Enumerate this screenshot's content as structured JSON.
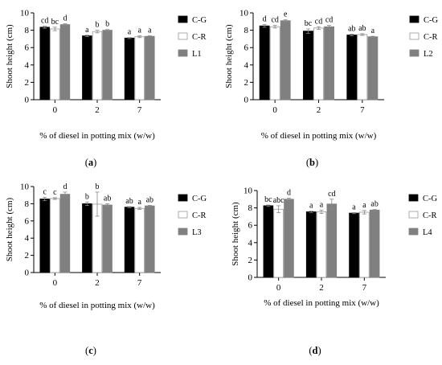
{
  "chart_data": [
    {
      "type": "bar",
      "panel_label": "(a)",
      "ylabel": "Shoot height (cm)",
      "xlabel": "% of diesel in potting mix (w/w)",
      "categories": [
        "0",
        "2",
        "7"
      ],
      "ylim": [
        0,
        10
      ],
      "yticks": [
        "0",
        "2",
        "4",
        "6",
        "8",
        "10"
      ],
      "series": [
        {
          "name": "C-G",
          "values": [
            8.35,
            7.35,
            7.1
          ],
          "errors": [
            0.12,
            0.08,
            0.06
          ],
          "letters": [
            "cd",
            "a",
            "a"
          ]
        },
        {
          "name": "C-R",
          "values": [
            8.15,
            7.85,
            7.25
          ],
          "errors": [
            0.2,
            0.15,
            0.1
          ],
          "letters": [
            "bc",
            "b",
            "a"
          ]
        },
        {
          "name": "L1",
          "values": [
            8.65,
            8.0,
            7.3
          ],
          "errors": [
            0.1,
            0.08,
            0.06
          ],
          "letters": [
            "d",
            "b",
            "a"
          ]
        }
      ],
      "legend_position": "right"
    },
    {
      "type": "bar",
      "panel_label": "(b)",
      "ylabel": "Shoot height (cm)",
      "xlabel": "% of diesel in potting mix (w/w)",
      "categories": [
        "0",
        "2",
        "7"
      ],
      "ylim": [
        0,
        10
      ],
      "yticks": [
        "0",
        "2",
        "4",
        "6",
        "8",
        "10"
      ],
      "series": [
        {
          "name": "C-G",
          "values": [
            8.5,
            7.9,
            7.45
          ],
          "errors": [
            0.15,
            0.25,
            0.1
          ],
          "letters": [
            "d",
            "bc",
            "ab"
          ]
        },
        {
          "name": "C-R",
          "values": [
            8.4,
            8.25,
            7.5
          ],
          "errors": [
            0.15,
            0.15,
            0.1
          ],
          "letters": [
            "cd",
            "cd",
            "ab"
          ]
        },
        {
          "name": "L2",
          "values": [
            9.1,
            8.4,
            7.25
          ],
          "errors": [
            0.1,
            0.15,
            0.06
          ],
          "letters": [
            "e",
            "cd",
            "a"
          ]
        }
      ],
      "legend_position": "right"
    },
    {
      "type": "bar",
      "panel_label": "(c)",
      "ylabel": "Shoot height (cm)",
      "xlabel": "% of diesel in potting mix (w/w)",
      "categories": [
        "0",
        "2",
        "7"
      ],
      "ylim": [
        0,
        10
      ],
      "yticks": [
        "0",
        "2",
        "4",
        "6",
        "8",
        "10"
      ],
      "series": [
        {
          "name": "C-G",
          "values": [
            8.55,
            8.0,
            7.6
          ],
          "errors": [
            0.2,
            0.2,
            0.06
          ],
          "letters": [
            "c",
            "b",
            "ab"
          ]
        },
        {
          "name": "C-R",
          "values": [
            8.6,
            7.95,
            7.45
          ],
          "errors": [
            0.1,
            1.4,
            0.12
          ],
          "letters": [
            "c",
            "b",
            "a"
          ]
        },
        {
          "name": "L3",
          "values": [
            9.1,
            7.85,
            7.75
          ],
          "errors": [
            0.25,
            0.15,
            0.06
          ],
          "letters": [
            "d",
            "ab",
            "ab"
          ]
        }
      ],
      "legend_position": "right"
    },
    {
      "type": "bar",
      "panel_label": "(d)",
      "ylabel": "Shoot height (cm)",
      "xlabel": "% of diesel in potting mix (w/w)",
      "categories": [
        "0",
        "2",
        "7"
      ],
      "ylim": [
        0,
        10
      ],
      "yticks": [
        "0",
        "2",
        "4",
        "6",
        "8",
        "10"
      ],
      "series": [
        {
          "name": "C-G",
          "values": [
            8.25,
            7.55,
            7.4
          ],
          "errors": [
            0.08,
            0.08,
            0.06
          ],
          "letters": [
            "bc",
            "a",
            "a"
          ]
        },
        {
          "name": "C-R",
          "values": [
            7.85,
            7.55,
            7.5
          ],
          "errors": [
            0.4,
            0.2,
            0.2
          ],
          "letters": [
            "abc",
            "a",
            "a"
          ]
        },
        {
          "name": "L4",
          "values": [
            9.0,
            8.45,
            7.75
          ],
          "errors": [
            0.12,
            0.55,
            0.06
          ],
          "letters": [
            "d",
            "cd",
            "ab"
          ]
        }
      ],
      "legend_position": "right"
    }
  ],
  "colors": {
    "series_fill": [
      "#000000",
      "#ffffff",
      "#808080"
    ],
    "series_stroke": [
      "#000000",
      "#999999",
      "#808080"
    ],
    "axis": "#000000",
    "error_bar": "#888888"
  }
}
